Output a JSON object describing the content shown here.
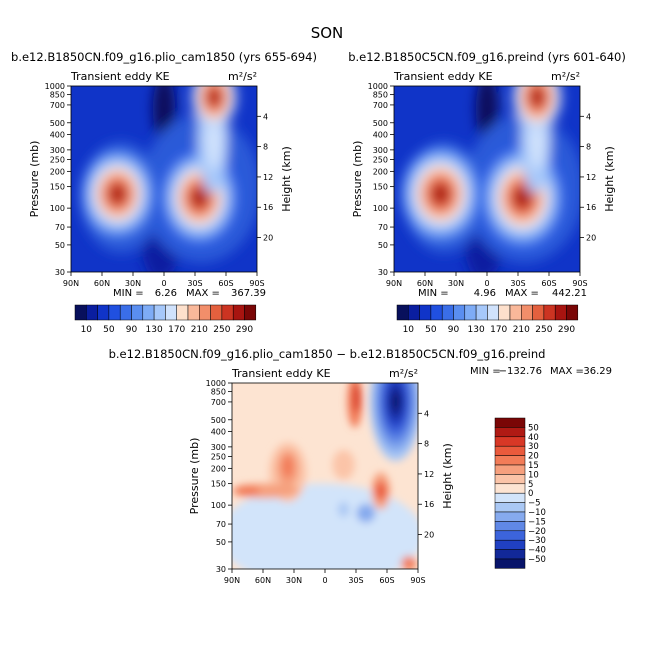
{
  "page_title": "SON",
  "chart_data": [
    {
      "type": "heatmap",
      "title": "b.e12.B1850CN.f09_g16.plio_cam1850 (yrs 655-694)",
      "left_label": "Transient eddy KE",
      "units_label": "m²/s²",
      "xlabel": "",
      "ylabel": "Pressure (mb)",
      "y2label": "Height (km)",
      "x_ticks": [
        "90N",
        "60N",
        "30N",
        "0",
        "30S",
        "60S",
        "90S"
      ],
      "y_ticks": [
        "30",
        "50",
        "70",
        "100",
        "150",
        "200",
        "250",
        "300",
        "400",
        "500",
        "700",
        "850",
        "1000"
      ],
      "height_ticks": [
        "4",
        "8",
        "12",
        "16",
        "20"
      ],
      "min_label": "MIN =",
      "min_value": "6.26",
      "max_label": "MAX =",
      "max_value": "367.39",
      "colorbar_labels": [
        "10",
        "50",
        "90",
        "130",
        "170",
        "210",
        "250",
        "290"
      ],
      "xlim": [
        -90,
        90
      ],
      "ylim_mb": [
        1000,
        30
      ]
    },
    {
      "type": "heatmap",
      "title": "b.e12.B1850C5CN.f09_g16.preind (yrs 601-640)",
      "left_label": "Transient eddy KE",
      "units_label": "m²/s²",
      "xlabel": "",
      "ylabel": "Pressure (mb)",
      "y2label": "Height (km)",
      "x_ticks": [
        "90N",
        "60N",
        "30N",
        "0",
        "30S",
        "60S",
        "90S"
      ],
      "y_ticks": [
        "30",
        "50",
        "70",
        "100",
        "150",
        "200",
        "250",
        "300",
        "400",
        "500",
        "700",
        "850",
        "1000"
      ],
      "height_ticks": [
        "4",
        "8",
        "12",
        "16",
        "20"
      ],
      "min_label": "MIN =",
      "min_value": "4.96",
      "max_label": "MAX =",
      "max_value": "442.21",
      "colorbar_labels": [
        "10",
        "50",
        "90",
        "130",
        "170",
        "210",
        "250",
        "290"
      ],
      "xlim": [
        -90,
        90
      ],
      "ylim_mb": [
        1000,
        30
      ]
    },
    {
      "type": "heatmap",
      "title": "b.e12.B1850CN.f09_g16.plio_cam1850 − b.e12.B1850C5CN.f09_g16.preind",
      "left_label": "Transient eddy KE",
      "units_label": "m²/s²",
      "xlabel": "",
      "ylabel": "Pressure (mb)",
      "y2label": "Height (km)",
      "x_ticks": [
        "90N",
        "60N",
        "30N",
        "0",
        "30S",
        "60S",
        "90S"
      ],
      "y_ticks": [
        "30",
        "50",
        "70",
        "100",
        "150",
        "200",
        "250",
        "300",
        "400",
        "500",
        "700",
        "850",
        "1000"
      ],
      "height_ticks": [
        "4",
        "8",
        "12",
        "16",
        "20"
      ],
      "min_label": "MIN =",
      "min_value": "−132.76",
      "max_label": "MAX =",
      "max_value": "36.29",
      "colorbar_labels": [
        "50",
        "40",
        "30",
        "20",
        "15",
        "10",
        "5",
        "0",
        "−5",
        "−10",
        "−15",
        "−20",
        "−30",
        "−40",
        "−50"
      ],
      "xlim": [
        -90,
        90
      ],
      "ylim_mb": [
        1000,
        30
      ]
    }
  ],
  "palettes": {
    "abs": [
      "#08105c",
      "#0a1ea0",
      "#1034c8",
      "#2050e0",
      "#3a6ee8",
      "#5a8ef0",
      "#7eacf6",
      "#a6c8fa",
      "#d0e2fc",
      "#fde0cc",
      "#f9b89a",
      "#f28e6a",
      "#e4603e",
      "#cc3422",
      "#a81410",
      "#7a0606"
    ],
    "diff": [
      "#7a0606",
      "#b01a14",
      "#d83826",
      "#ea5a3c",
      "#f27c58",
      "#f6a07e",
      "#fbc4a8",
      "#fde4d2",
      "#d2e4fa",
      "#aac8f4",
      "#86aaee",
      "#6088e6",
      "#3c64dc",
      "#2040c2",
      "#122898",
      "#08146a"
    ],
    "abs_field": [
      "#0a1ea0",
      "#1034c8",
      "#2050e0",
      "#3a6ee8",
      "#5a8ef0",
      "#7eacf6",
      "#a6c8fa",
      "#d0e2fc",
      "#fde0cc",
      "#f9b89a",
      "#f28e6a",
      "#e4603e",
      "#cc3422",
      "#a81410",
      "#7a0606"
    ]
  }
}
